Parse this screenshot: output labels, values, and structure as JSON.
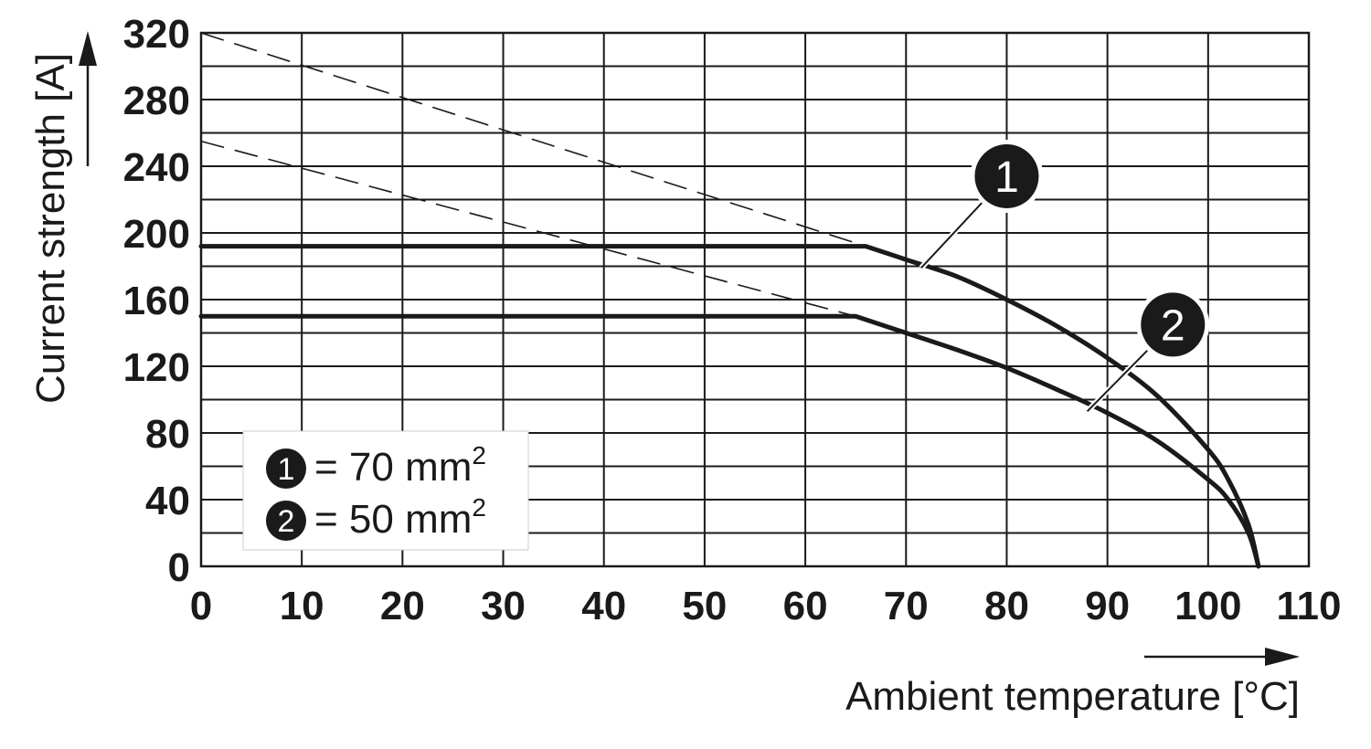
{
  "chart_data": {
    "type": "line",
    "xlabel": "Ambient temperature [°C]",
    "ylabel": "Current strength [A]",
    "xlim": [
      0,
      110
    ],
    "ylim": [
      0,
      320
    ],
    "x_ticks": [
      "0",
      "10",
      "20",
      "30",
      "40",
      "50",
      "60",
      "70",
      "80",
      "90",
      "100",
      "110"
    ],
    "y_ticks": [
      "0",
      "40",
      "80",
      "120",
      "160",
      "200",
      "240",
      "280",
      "320"
    ],
    "grid": true,
    "legend_placement": "bottom-left",
    "series": [
      {
        "marker": "1",
        "legend": "= 70 mm",
        "legend_sup": "2",
        "points": [
          [
            0,
            192
          ],
          [
            66,
            192
          ],
          [
            70,
            184
          ],
          [
            75,
            174
          ],
          [
            80,
            160
          ],
          [
            85,
            144
          ],
          [
            90,
            125
          ],
          [
            95,
            102
          ],
          [
            100,
            70
          ],
          [
            102,
            52
          ],
          [
            104,
            25
          ],
          [
            105,
            0
          ]
        ],
        "dashed_extension": [
          [
            0,
            320
          ],
          [
            66,
            192
          ]
        ]
      },
      {
        "marker": "2",
        "legend": "= 50 mm",
        "legend_sup": "2",
        "points": [
          [
            0,
            150
          ],
          [
            65,
            150
          ],
          [
            70,
            140
          ],
          [
            75,
            130
          ],
          [
            80,
            119
          ],
          [
            85,
            106
          ],
          [
            90,
            92
          ],
          [
            95,
            75
          ],
          [
            100,
            52
          ],
          [
            102,
            40
          ],
          [
            104,
            20
          ],
          [
            105,
            0
          ]
        ],
        "dashed_extension": [
          [
            0,
            255
          ],
          [
            65,
            150
          ]
        ]
      }
    ],
    "callouts": [
      {
        "marker": "1",
        "badge_at": [
          80,
          234
        ],
        "points_to": [
          71.5,
          179
        ]
      },
      {
        "marker": "2",
        "badge_at": [
          96.5,
          145
        ],
        "points_to": [
          88,
          93
        ]
      }
    ]
  }
}
